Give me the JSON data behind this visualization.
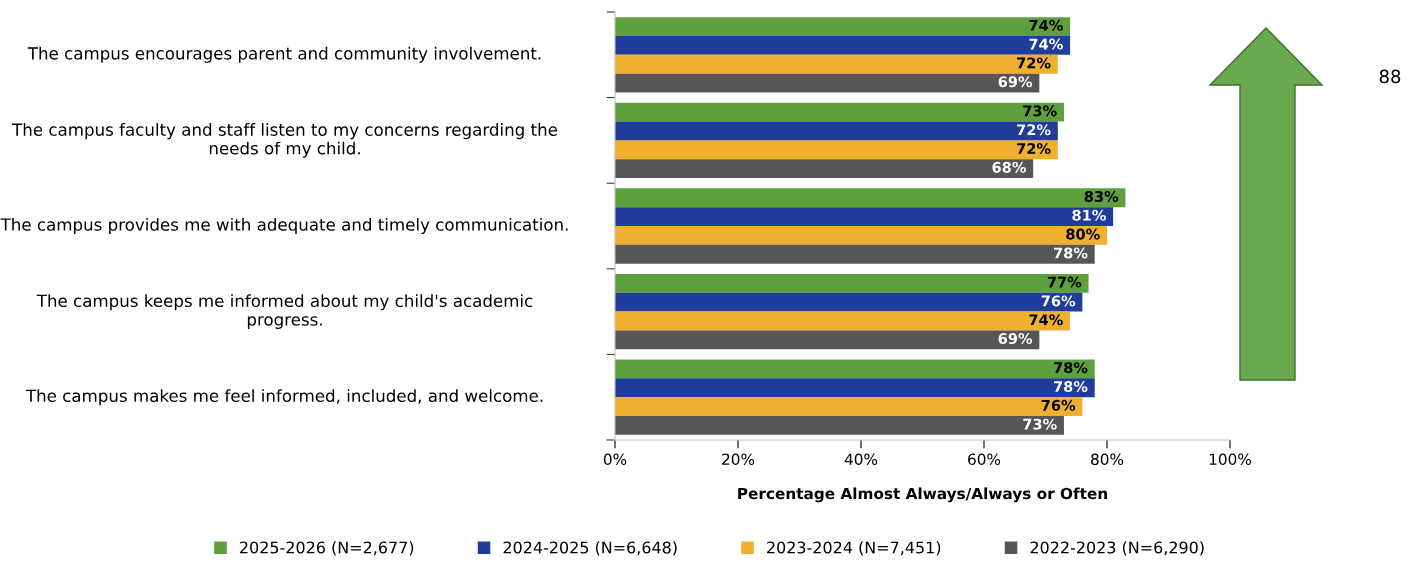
{
  "chart_data": {
    "type": "bar",
    "orientation": "horizontal",
    "xlabel": "Percentage Almost Always/Always or Often",
    "categories": [
      "The campus encourages parent and community involvement.",
      "The campus faculty and staff listen to my concerns regarding the needs of my child.",
      "The campus provides me with adequate and timely communication.",
      "The campus keeps me informed about my child's academic progress.",
      "The campus makes me feel informed, included, and welcome."
    ],
    "series": [
      {
        "name": "2025-2026 (N=2,677)",
        "color": "#5e9f3e",
        "values": [
          74,
          73,
          83,
          77,
          78
        ],
        "value_labels": [
          "74%",
          "73%",
          "83%",
          "77%",
          "78%"
        ]
      },
      {
        "name": "2024-2025 (N=6,648)",
        "color": "#1f3d99",
        "values": [
          74,
          72,
          81,
          76,
          78
        ],
        "value_labels": [
          "74%",
          "72%",
          "81%",
          "76%",
          "78%"
        ]
      },
      {
        "name": "2023-2024 (N=7,451)",
        "color": "#efb02f",
        "values": [
          72,
          72,
          80,
          74,
          76
        ],
        "value_labels": [
          "72%",
          "72%",
          "80%",
          "74%",
          "76%"
        ]
      },
      {
        "name": "2022-2023 (N=6,290)",
        "color": "#565656",
        "values": [
          69,
          68,
          78,
          69,
          73
        ],
        "value_labels": [
          "69%",
          "68%",
          "78%",
          "69%",
          "73%"
        ]
      }
    ],
    "xlim": [
      0,
      100
    ],
    "xticks": [
      {
        "value": 0,
        "label": "0%"
      },
      {
        "value": 20,
        "label": "20%"
      },
      {
        "value": 40,
        "label": "40%"
      },
      {
        "value": 60,
        "label": "60%"
      },
      {
        "value": 80,
        "label": "80%"
      },
      {
        "value": 100,
        "label": "100%"
      }
    ],
    "grid": false,
    "legend": "bottom",
    "annotations": [
      "88"
    ]
  }
}
